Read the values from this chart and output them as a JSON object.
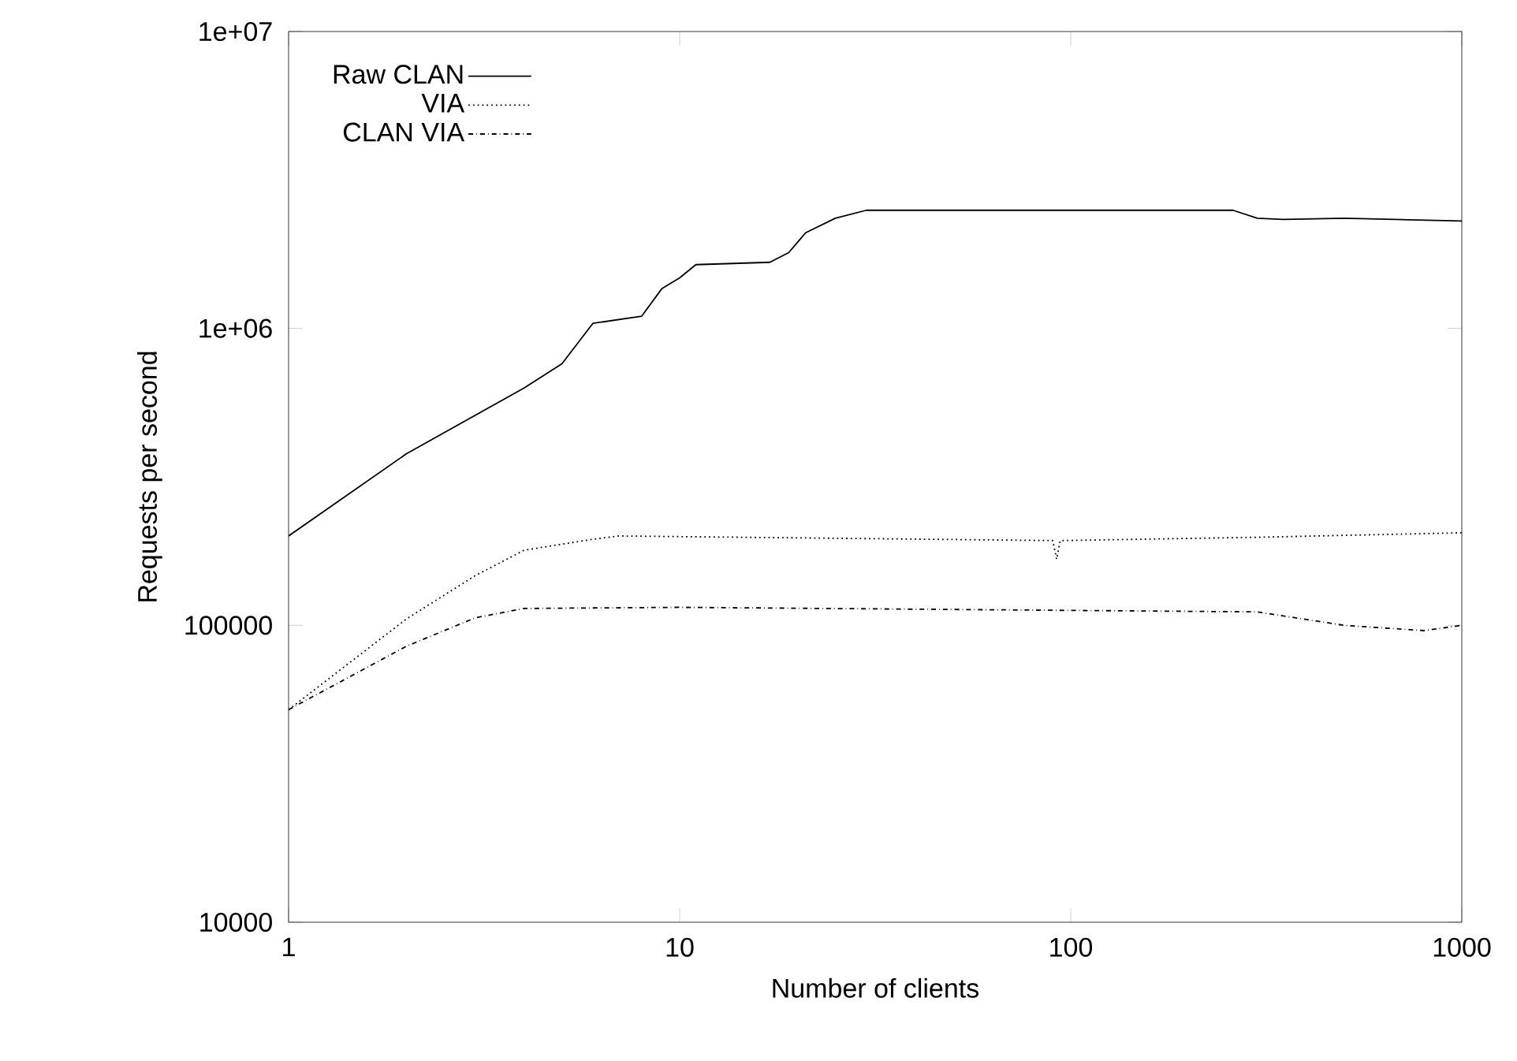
{
  "chart_data": {
    "type": "line",
    "xlabel": "Number of clients",
    "ylabel": "Requests per second",
    "log": "xy",
    "grid": false,
    "legend": "top left",
    "xlim": [
      1,
      1000
    ],
    "xticks": [
      1,
      10,
      100,
      1000
    ],
    "ylim": [
      10000,
      10000000
    ],
    "yticks": [
      10000,
      100000,
      {
        "value": 1000000,
        "label": "1e+06"
      },
      {
        "value": 10000000,
        "label": "1e+07"
      }
    ],
    "series": [
      {
        "name": "Raw CLAN",
        "color": "#000000",
        "line_style": "solid",
        "x": [
          1,
          2,
          4,
          5,
          6,
          8,
          9,
          10,
          11,
          17,
          19,
          21,
          25,
          30,
          100,
          260,
          300,
          350,
          500,
          1000
        ],
        "values": [
          200000,
          378000,
          630000,
          760000,
          1040000,
          1100000,
          1360000,
          1480000,
          1640000,
          1670000,
          1800000,
          2100000,
          2350000,
          2500000,
          2500000,
          2500000,
          2350000,
          2330000,
          2350000,
          2300000
        ]
      },
      {
        "name": "VIA",
        "color": "#000000",
        "line_style": "dotted",
        "x": [
          1,
          2,
          3,
          4,
          6,
          7,
          90,
          92,
          94,
          300,
          1000
        ],
        "values": [
          52000,
          105000,
          147000,
          179000,
          195000,
          200000,
          193000,
          167000,
          193000,
          198000,
          205000
        ]
      },
      {
        "name": "CLAN VIA",
        "color": "#000000",
        "line_style": "dashdot",
        "x": [
          1,
          2,
          3,
          4,
          10,
          300,
          500,
          800,
          1000
        ],
        "values": [
          52000,
          85000,
          106000,
          114000,
          115000,
          111000,
          100000,
          96000,
          100000
        ]
      }
    ]
  }
}
